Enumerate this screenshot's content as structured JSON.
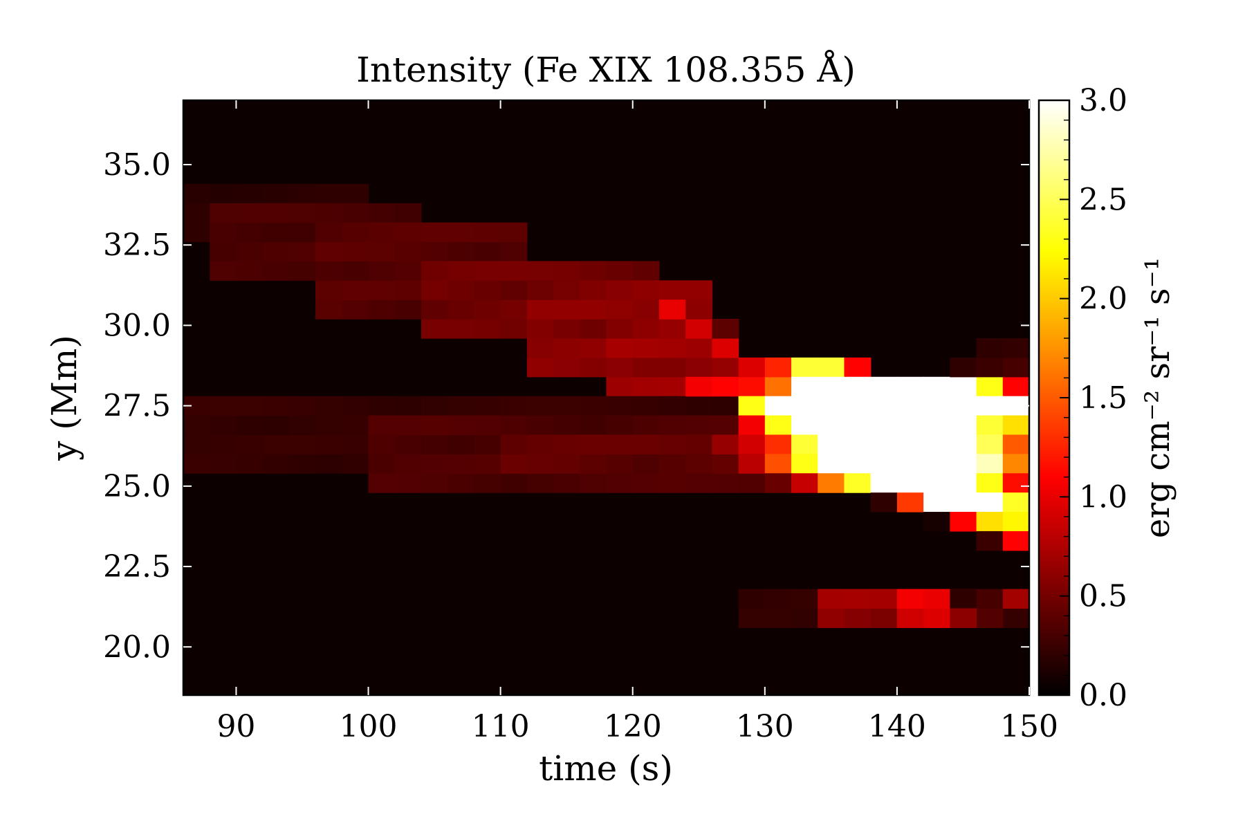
{
  "chart_data": {
    "type": "heatmap",
    "title": "Intensity (Fe XIX 108.355 Å)",
    "xlabel": "time (s)",
    "ylabel": "y (Mm)",
    "xlim": [
      86,
      150
    ],
    "ylim": [
      18.5,
      37.0
    ],
    "x_ticks": [
      90,
      100,
      110,
      120,
      130,
      140,
      150
    ],
    "x_tick_labels": [
      "90",
      "100",
      "110",
      "120",
      "130",
      "140",
      "150"
    ],
    "y_ticks": [
      20.0,
      22.5,
      25.0,
      27.5,
      30.0,
      32.5,
      35.0
    ],
    "y_tick_labels": [
      "20.0",
      "22.5",
      "25.0",
      "27.5",
      "30.0",
      "32.5",
      "35.0"
    ],
    "colormap": "hot",
    "grid": false,
    "colorbar": {
      "label": "erg cm⁻² sr⁻¹ s⁻¹",
      "vmin": 0.0,
      "vmax": 3.0,
      "ticks": [
        0.0,
        0.5,
        1.0,
        1.5,
        2.0,
        2.5,
        3.0
      ],
      "tick_labels": [
        "0.0",
        "0.5",
        "1.0",
        "1.5",
        "2.0",
        "2.5",
        "3.0"
      ]
    },
    "x_step": 2,
    "y_step": 0.6,
    "bands": [
      {
        "name": "upper diagonal band",
        "rows": [
          [
            86,
            100,
            33.8,
            32.6,
            0.18
          ],
          [
            88,
            104,
            33.2,
            31.4,
            0.3
          ],
          [
            96,
            112,
            32.6,
            30.2,
            0.36
          ],
          [
            104,
            122,
            31.4,
            29.6,
            0.45
          ],
          [
            112,
            126,
            30.8,
            28.4,
            0.55
          ],
          [
            118,
            128,
            29.6,
            27.8,
            0.62
          ]
        ]
      },
      {
        "name": "middle band",
        "rows": [
          [
            86,
            128,
            27.2,
            25.4,
            0.22
          ],
          [
            100,
            130,
            26.6,
            24.8,
            0.32
          ],
          [
            110,
            128,
            26.0,
            25.4,
            0.4
          ]
        ]
      },
      {
        "name": "lower band",
        "rows": [
          [
            128,
            150,
            21.2,
            20.6,
            0.2
          ],
          [
            134,
            146,
            21.2,
            20.6,
            0.62
          ],
          [
            140,
            146,
            21.2,
            20.6,
            0.95
          ]
        ]
      }
    ],
    "hot_cells": [
      [
        124,
        27.8,
        1.05
      ],
      [
        126,
        27.8,
        1.1
      ],
      [
        128,
        27.8,
        1.15
      ],
      [
        130,
        27.8,
        1.6
      ],
      [
        128,
        28.4,
        0.95
      ],
      [
        130,
        28.4,
        1.25
      ],
      [
        132,
        28.4,
        2.4
      ],
      [
        134,
        28.4,
        2.4
      ],
      [
        136,
        28.4,
        1.1
      ],
      [
        132,
        27.8,
        3.0
      ],
      [
        134,
        27.8,
        3.0
      ],
      [
        136,
        27.8,
        3.0
      ],
      [
        138,
        27.8,
        3.0
      ],
      [
        140,
        27.8,
        3.0
      ],
      [
        142,
        27.8,
        3.0
      ],
      [
        144,
        27.8,
        3.0
      ],
      [
        146,
        27.8,
        2.3
      ],
      [
        148,
        27.8,
        1.1
      ],
      [
        128,
        27.2,
        2.3
      ],
      [
        130,
        27.2,
        3.0
      ],
      [
        132,
        27.2,
        3.0
      ],
      [
        134,
        27.2,
        3.0
      ],
      [
        136,
        27.2,
        3.0
      ],
      [
        138,
        27.2,
        3.0
      ],
      [
        140,
        27.2,
        3.0
      ],
      [
        142,
        27.2,
        3.0
      ],
      [
        144,
        27.2,
        3.0
      ],
      [
        146,
        27.2,
        3.0
      ],
      [
        148,
        27.2,
        3.0
      ],
      [
        128,
        26.6,
        1.05
      ],
      [
        130,
        26.6,
        2.3
      ],
      [
        132,
        26.6,
        3.0
      ],
      [
        134,
        26.6,
        3.0
      ],
      [
        136,
        26.6,
        3.0
      ],
      [
        138,
        26.6,
        3.0
      ],
      [
        140,
        26.6,
        3.0
      ],
      [
        142,
        26.6,
        3.0
      ],
      [
        144,
        26.6,
        3.0
      ],
      [
        146,
        26.6,
        2.4
      ],
      [
        148,
        26.6,
        2.1
      ],
      [
        126,
        26.0,
        0.65
      ],
      [
        128,
        26.0,
        0.9
      ],
      [
        130,
        26.0,
        1.3
      ],
      [
        132,
        26.0,
        2.4
      ],
      [
        134,
        26.0,
        3.0
      ],
      [
        136,
        26.0,
        3.0
      ],
      [
        138,
        26.0,
        3.0
      ],
      [
        140,
        26.0,
        3.0
      ],
      [
        142,
        26.0,
        3.0
      ],
      [
        144,
        26.0,
        3.0
      ],
      [
        146,
        26.0,
        2.5
      ],
      [
        148,
        26.0,
        1.5
      ],
      [
        128,
        25.4,
        0.8
      ],
      [
        130,
        25.4,
        1.45
      ],
      [
        132,
        25.4,
        2.3
      ],
      [
        134,
        25.4,
        3.0
      ],
      [
        136,
        25.4,
        3.0
      ],
      [
        138,
        25.4,
        3.0
      ],
      [
        140,
        25.4,
        3.0
      ],
      [
        142,
        25.4,
        3.0
      ],
      [
        144,
        25.4,
        3.0
      ],
      [
        146,
        25.4,
        2.8
      ],
      [
        148,
        25.4,
        1.7
      ],
      [
        130,
        24.8,
        0.45
      ],
      [
        132,
        24.8,
        0.85
      ],
      [
        134,
        24.8,
        1.65
      ],
      [
        136,
        24.8,
        2.35
      ],
      [
        138,
        24.8,
        3.0
      ],
      [
        140,
        24.8,
        3.0
      ],
      [
        142,
        24.8,
        3.0
      ],
      [
        144,
        24.8,
        3.0
      ],
      [
        146,
        24.8,
        2.3
      ],
      [
        148,
        24.8,
        1.15
      ],
      [
        138,
        24.2,
        0.2
      ],
      [
        140,
        24.2,
        1.35
      ],
      [
        142,
        24.2,
        3.0
      ],
      [
        144,
        24.2,
        3.0
      ],
      [
        146,
        24.2,
        3.0
      ],
      [
        148,
        24.2,
        2.35
      ],
      [
        142,
        23.6,
        0.1
      ],
      [
        144,
        23.6,
        1.1
      ],
      [
        146,
        23.6,
        2.1
      ],
      [
        148,
        23.6,
        2.2
      ],
      [
        146,
        23.0,
        0.25
      ],
      [
        148,
        23.0,
        1.1
      ],
      [
        144,
        21.2,
        0.2
      ],
      [
        146,
        21.2,
        0.3
      ],
      [
        148,
        21.2,
        0.7
      ],
      [
        146,
        20.6,
        0.35
      ],
      [
        144,
        20.6,
        0.6
      ],
      [
        144,
        28.4,
        0.2
      ],
      [
        146,
        28.4,
        0.25
      ],
      [
        148,
        28.4,
        0.3
      ],
      [
        146,
        29.0,
        0.2
      ],
      [
        148,
        29.0,
        0.22
      ],
      [
        122,
        30.2,
        1.0
      ],
      [
        124,
        29.6,
        0.9
      ],
      [
        126,
        29.0,
        0.95
      ],
      [
        124,
        30.2,
        0.6
      ],
      [
        126,
        29.6,
        0.4
      ]
    ]
  }
}
